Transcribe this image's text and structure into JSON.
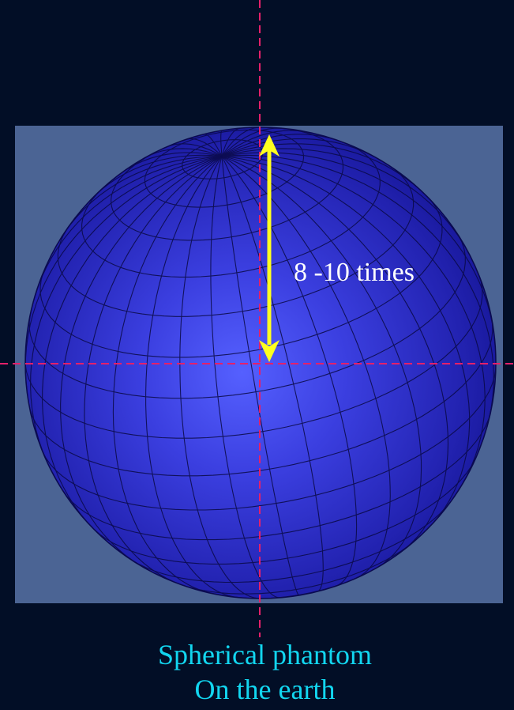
{
  "annotation": {
    "label": "8 -10 times"
  },
  "caption": {
    "line1": "Spherical phantom",
    "line2": "On the earth"
  },
  "colors": {
    "background": "#020e26",
    "panel": "#4b6494",
    "sphere_light": "#5560ff",
    "sphere_dark": "#10108a",
    "arrow": "#ffff20",
    "crosshair": "#e4206a",
    "caption": "#12d6f0",
    "label": "#ffffff"
  },
  "icons": [
    "sphere-mesh",
    "double-headed-arrow",
    "crosshair-lines"
  ]
}
